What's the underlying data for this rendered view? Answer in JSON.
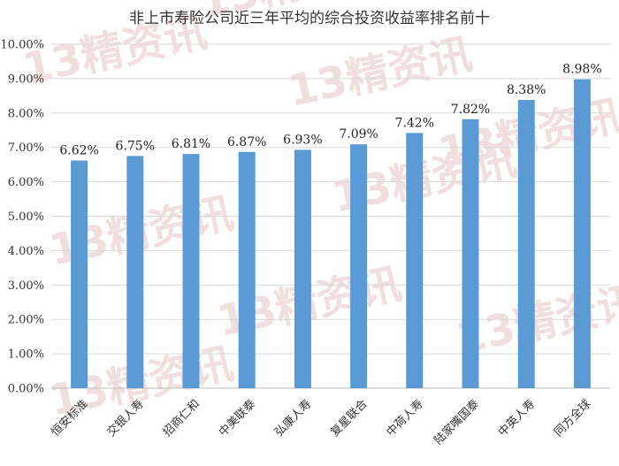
{
  "chart_data": {
    "type": "bar",
    "title": "非上市寿险公司近三年平均的综合投资收益率排名前十",
    "categories": [
      "恒安标准",
      "交银人寿",
      "招商仁和",
      "中美联泰",
      "弘康人寿",
      "复星联合",
      "中荷人寿",
      "陆家嘴国泰",
      "中英人寿",
      "同方全球"
    ],
    "values": [
      6.62,
      6.75,
      6.81,
      6.87,
      6.93,
      7.09,
      7.42,
      7.82,
      8.38,
      8.98
    ],
    "data_labels": [
      "6.62%",
      "6.75%",
      "6.81%",
      "6.87%",
      "6.93%",
      "7.09%",
      "7.42%",
      "7.82%",
      "8.38%",
      "8.98%"
    ],
    "ylim": [
      0,
      10
    ],
    "y_ticks": [
      "0.00%",
      "1.00%",
      "2.00%",
      "3.00%",
      "4.00%",
      "5.00%",
      "6.00%",
      "7.00%",
      "8.00%",
      "9.00%",
      "10.00%"
    ],
    "bar_color": "#5b9bd5",
    "grid": true,
    "legend": "none"
  },
  "watermark": {
    "text": "13精资讯"
  }
}
